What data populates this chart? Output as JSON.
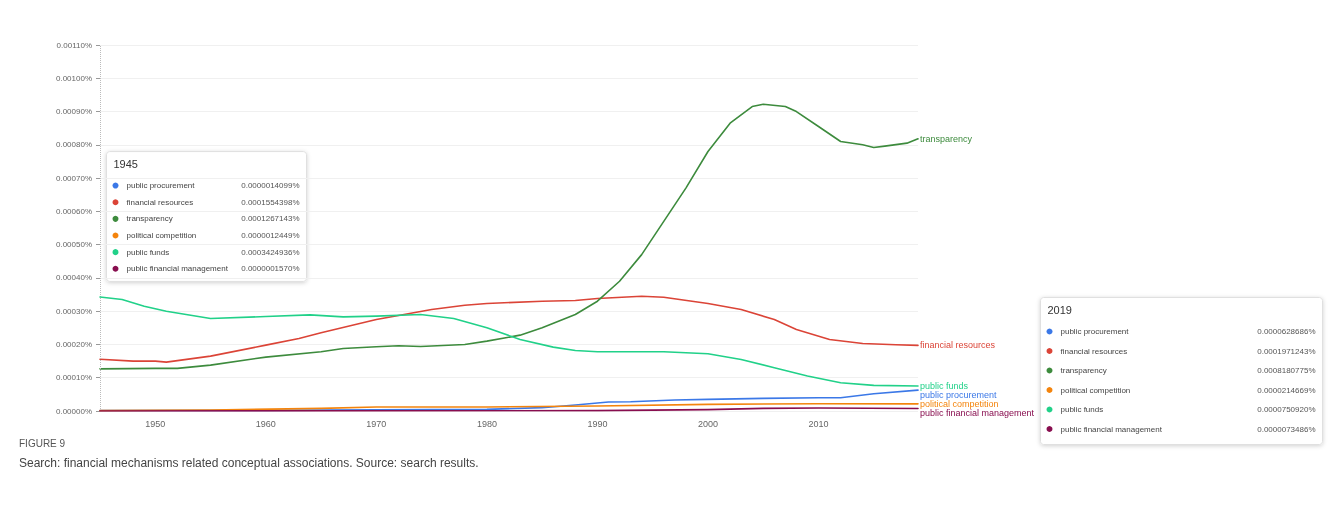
{
  "chart_data": {
    "type": "line",
    "title": "FIGURE 9",
    "subtitle": "Search: financial mechanisms related conceptual associations. Source: search results.",
    "xlim": [
      1945,
      2019
    ],
    "xticks": [
      1950,
      1960,
      1970,
      1980,
      1990,
      2000,
      2010
    ],
    "ylim": [
      0,
      0.0011
    ],
    "yticks": [
      {
        "value": 0,
        "label": "0.00000%"
      },
      {
        "value": 0.0001,
        "label": "0.00010%"
      },
      {
        "value": 0.0002,
        "label": "0.00020%"
      },
      {
        "value": 0.0003,
        "label": "0.00030%"
      },
      {
        "value": 0.0004,
        "label": "0.00040%"
      },
      {
        "value": 0.0005,
        "label": "0.00050%"
      },
      {
        "value": 0.0006,
        "label": "0.00060%"
      },
      {
        "value": 0.0007,
        "label": "0.00070%"
      },
      {
        "value": 0.0008,
        "label": "0.00080%"
      },
      {
        "value": 0.0009,
        "label": "0.00090%"
      },
      {
        "value": 0.001,
        "label": "0.00100%"
      },
      {
        "value": 0.0011,
        "label": "0.00110%"
      }
    ],
    "grid": "y",
    "legend": "right",
    "ref_lines": [
      {
        "axis": "x",
        "value": 1945,
        "color": "#bbbbbb",
        "line_style": "dotted"
      }
    ],
    "annotations": [
      "1945",
      "0.0000014099%",
      "0.0001554398%",
      "0.0001267143%",
      "0.0000012449%",
      "0.0003424936%",
      "0.0000001570%",
      "2019",
      "0.0000628686%",
      "0.0001971243%",
      "0.0008180775%",
      "0.0000214669%",
      "0.0000750920%",
      "0.0000073486%"
    ],
    "series": [
      {
        "name": "public procurement",
        "color": "#3b78e7",
        "x": [
          1945,
          1960,
          1980,
          1985,
          1988,
          1991,
          1993,
          1997,
          2000,
          2005,
          2010,
          2012,
          2015,
          2019
        ],
        "values": [
          1.4099e-06,
          2e-06,
          5e-06,
          1e-05,
          1.8e-05,
          2.7e-05,
          2.8e-05,
          3.3e-05,
          3.5e-05,
          3.8e-05,
          4e-05,
          4e-05,
          5.2e-05,
          6.28686e-05
        ]
      },
      {
        "name": "financial resources",
        "color": "#db4437",
        "x": [
          1945,
          1948,
          1950,
          1951,
          1955,
          1960,
          1963,
          1965,
          1970,
          1975,
          1978,
          1980,
          1985,
          1988,
          1990,
          1994,
          1996,
          2000,
          2003,
          2006,
          2008,
          2011,
          2014,
          2017,
          2019
        ],
        "values": [
          0.0001554398,
          0.00015,
          0.00015,
          0.000147,
          0.000165,
          0.000198,
          0.000218,
          0.000235,
          0.000275,
          0.000305,
          0.000318,
          0.000323,
          0.00033,
          0.000332,
          0.000338,
          0.000345,
          0.000342,
          0.000323,
          0.000305,
          0.000275,
          0.000245,
          0.000215,
          0.000203,
          0.000199,
          0.0001971243
        ]
      },
      {
        "name": "transparency",
        "color": "#3d8b3d",
        "x": [
          1945,
          1950,
          1952,
          1955,
          1960,
          1965,
          1967,
          1970,
          1972,
          1974,
          1978,
          1980,
          1983,
          1985,
          1988,
          1990,
          1992,
          1994,
          1996,
          1998,
          2000,
          2002,
          2004,
          2005,
          2007,
          2008,
          2010,
          2012,
          2014,
          2015,
          2016,
          2018,
          2019
        ],
        "values": [
          0.0001267143,
          0.000128,
          0.000128,
          0.000138,
          0.000162,
          0.000178,
          0.000188,
          0.000193,
          0.000196,
          0.000194,
          0.0002,
          0.00021,
          0.000228,
          0.00025,
          0.00029,
          0.00033,
          0.00039,
          0.00047,
          0.00057,
          0.00067,
          0.00078,
          0.000865,
          0.000915,
          0.000922,
          0.000915,
          0.0009,
          0.000855,
          0.00081,
          0.0008,
          0.000792,
          0.000796,
          0.000805,
          0.0008180775
        ]
      },
      {
        "name": "political competition",
        "color": "#f4840c",
        "x": [
          1945,
          1955,
          1965,
          1970,
          1980,
          1990,
          2000,
          2010,
          2019
        ],
        "values": [
          1.2449e-06,
          3e-06,
          8e-06,
          1.2e-05,
          1.2e-05,
          1.5e-05,
          2e-05,
          2.2e-05,
          2.14669e-05
        ]
      },
      {
        "name": "public funds",
        "color": "#21d189",
        "x": [
          1945,
          1947,
          1949,
          1951,
          1955,
          1960,
          1964,
          1967,
          1970,
          1974,
          1977,
          1980,
          1983,
          1986,
          1988,
          1990,
          1996,
          2000,
          2003,
          2006,
          2009,
          2012,
          2015,
          2019
        ],
        "values": [
          0.0003424936,
          0.000335,
          0.000315,
          0.0003,
          0.000278,
          0.000284,
          0.000289,
          0.000283,
          0.000285,
          0.00029,
          0.000278,
          0.00025,
          0.000215,
          0.000192,
          0.000182,
          0.000178,
          0.000178,
          0.000172,
          0.000155,
          0.00013,
          0.000105,
          8.5e-05,
          7.7e-05,
          7.5092e-05
        ]
      },
      {
        "name": "public financial management",
        "color": "#880e4f",
        "x": [
          1945,
          1990,
          2000,
          2005,
          2010,
          2019
        ],
        "values": [
          1.57e-07,
          1e-06,
          4e-06,
          8e-06,
          9e-06,
          7.3486e-06
        ]
      }
    ]
  }
}
